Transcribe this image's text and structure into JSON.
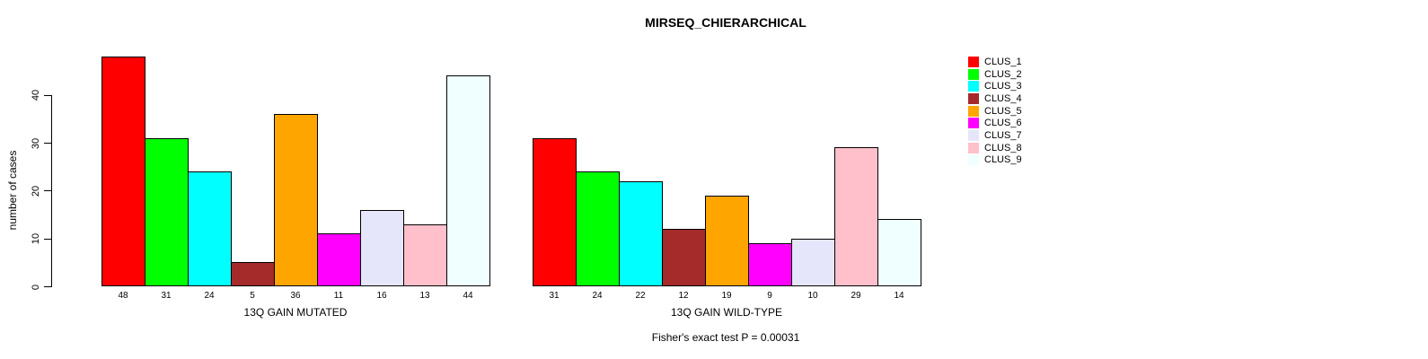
{
  "title": "MIRSEQ_CHIERARCHICAL",
  "footer": "Fisher's exact test P = 0.00031",
  "y_axis": {
    "label": "number of cases",
    "ticks": [
      0,
      10,
      20,
      30,
      40
    ]
  },
  "legend": {
    "position": "right-outside",
    "entries": [
      {
        "label": "CLUS_1",
        "color": "#ff0000"
      },
      {
        "label": "CLUS_2",
        "color": "#00ff00"
      },
      {
        "label": "CLUS_3",
        "color": "#00ffff"
      },
      {
        "label": "CLUS_4",
        "color": "#a52a2a"
      },
      {
        "label": "CLUS_5",
        "color": "#ffa500"
      },
      {
        "label": "CLUS_6",
        "color": "#ff00ff"
      },
      {
        "label": "CLUS_7",
        "color": "#e6e6fa"
      },
      {
        "label": "CLUS_8",
        "color": "#ffc0cb"
      },
      {
        "label": "CLUS_9",
        "color": "#f0ffff"
      }
    ]
  },
  "chart_data": [
    {
      "type": "bar",
      "title": "MIRSEQ_CHIERARCHICAL",
      "xlabel": "13Q GAIN MUTATED",
      "ylabel": "number of cases",
      "categories": [
        "CLUS_1",
        "CLUS_2",
        "CLUS_3",
        "CLUS_4",
        "CLUS_5",
        "CLUS_6",
        "CLUS_7",
        "CLUS_8",
        "CLUS_9"
      ],
      "values": [
        48,
        31,
        24,
        5,
        36,
        11,
        16,
        13,
        44
      ],
      "colors": [
        "#ff0000",
        "#00ff00",
        "#00ffff",
        "#a52a2a",
        "#ffa500",
        "#ff00ff",
        "#e6e6fa",
        "#ffc0cb",
        "#f0ffff"
      ],
      "ylim": [
        0,
        48
      ],
      "grid": false,
      "bar_outline": "#000000",
      "annotation": "Fisher's exact test P = 0.00031"
    },
    {
      "type": "bar",
      "title": "MIRSEQ_CHIERARCHICAL",
      "xlabel": "13Q GAIN WILD-TYPE",
      "ylabel": "number of cases",
      "categories": [
        "CLUS_1",
        "CLUS_2",
        "CLUS_3",
        "CLUS_4",
        "CLUS_5",
        "CLUS_6",
        "CLUS_7",
        "CLUS_8",
        "CLUS_9"
      ],
      "values": [
        31,
        24,
        22,
        12,
        19,
        9,
        10,
        29,
        14
      ],
      "colors": [
        "#ff0000",
        "#00ff00",
        "#00ffff",
        "#a52a2a",
        "#ffa500",
        "#ff00ff",
        "#e6e6fa",
        "#ffc0cb",
        "#f0ffff"
      ],
      "ylim": [
        0,
        48
      ],
      "grid": false,
      "bar_outline": "#000000",
      "annotation": "Fisher's exact test P = 0.00031"
    }
  ]
}
